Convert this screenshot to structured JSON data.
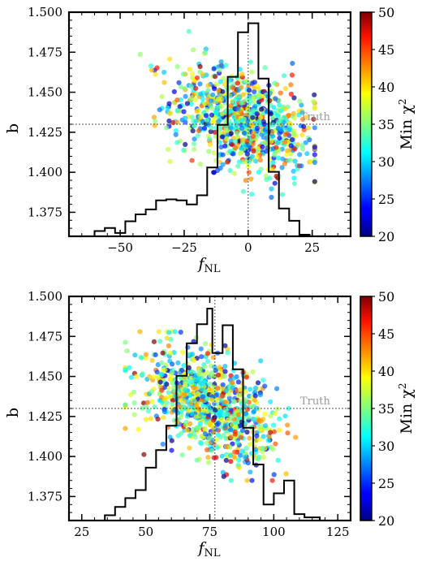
{
  "colors": {
    "colormap": "jet",
    "histogram": "#000000",
    "truth_line": "#555555",
    "truth_text": "#999999",
    "marker_alpha": 0.7
  },
  "chart_data": [
    {
      "type": "scatter",
      "panel": "top",
      "xlabel_main": "f",
      "xlabel_sub": "NL",
      "ylabel": "b",
      "xlim": [
        -70,
        40
      ],
      "ylim": [
        1.36,
        1.5
      ],
      "xticks": [
        -50,
        -25,
        0,
        25
      ],
      "xtick_labels": [
        "−50",
        "−25",
        "0",
        "25"
      ],
      "yticks": [
        1.375,
        1.4,
        1.425,
        1.45,
        1.475,
        1.5
      ],
      "ytick_labels": [
        "1.375",
        "1.400",
        "1.425",
        "1.450",
        "1.475",
        "1.500"
      ],
      "truth": {
        "x": 0,
        "y": 1.43,
        "label": "Truth"
      },
      "colorbar": {
        "label_main": "Min χ",
        "label_sup": "2",
        "range": [
          20,
          50
        ],
        "ticks": [
          20,
          25,
          30,
          35,
          40,
          45,
          50
        ],
        "tick_labels": [
          "20",
          "25",
          "30",
          "35",
          "40",
          "45",
          "50"
        ]
      },
      "points": {
        "count": 900,
        "x_center": -2,
        "x_spread": 14,
        "y_center": 1.432,
        "y_spread": 0.016,
        "slope": -0.00045,
        "x_range": [
          -62,
          26
        ],
        "y_range": [
          1.383,
          1.488
        ],
        "color_value_range": [
          20,
          50
        ],
        "color_value_mode": 34
      },
      "histogram": {
        "bin_edges": [
          -60,
          -56,
          -52,
          -48,
          -44,
          -40,
          -36,
          -32,
          -28,
          -24,
          -20,
          -16,
          -12,
          -8,
          -4,
          0,
          4,
          8,
          12,
          16,
          20,
          24
        ],
        "heights": [
          1.3633,
          1.3652,
          1.3621,
          1.3694,
          1.3737,
          1.3768,
          1.3824,
          1.3831,
          1.3824,
          1.3799,
          1.3856,
          1.403,
          1.4296,
          1.4596,
          1.4874,
          1.4931,
          1.4585,
          1.4003,
          1.3774,
          1.3697,
          1.361
        ],
        "baseline": 1.36
      }
    },
    {
      "type": "scatter",
      "panel": "bottom",
      "xlabel_main": "f",
      "xlabel_sub": "NL",
      "ylabel": "b",
      "xlim": [
        20,
        130
      ],
      "ylim": [
        1.36,
        1.5
      ],
      "xticks": [
        25,
        50,
        75,
        100,
        125
      ],
      "xtick_labels": [
        "25",
        "50",
        "75",
        "100",
        "125"
      ],
      "yticks": [
        1.375,
        1.4,
        1.425,
        1.45,
        1.475,
        1.5
      ],
      "ytick_labels": [
        "1.375",
        "1.400",
        "1.425",
        "1.450",
        "1.475",
        "1.500"
      ],
      "truth": {
        "x": 77,
        "y": 1.43,
        "label": "Truth"
      },
      "colorbar": {
        "label_main": "Min χ",
        "label_sup": "2",
        "range": [
          20,
          50
        ],
        "ticks": [
          20,
          25,
          30,
          35,
          40,
          45,
          50
        ],
        "tick_labels": [
          "20",
          "25",
          "30",
          "35",
          "40",
          "45",
          "50"
        ]
      },
      "points": {
        "count": 900,
        "x_center": 75,
        "x_spread": 13,
        "y_center": 1.432,
        "y_spread": 0.016,
        "slope": -0.00065,
        "x_range": [
          42,
          120
        ],
        "y_range": [
          1.385,
          1.478
        ],
        "color_value_range": [
          20,
          50
        ],
        "color_value_mode": 34
      },
      "histogram": {
        "bin_edges": [
          34,
          38,
          42,
          46,
          50,
          54,
          58,
          62,
          66,
          70,
          74,
          76,
          80,
          84,
          88,
          92,
          96,
          100,
          104,
          108,
          112,
          118
        ],
        "heights": [
          1.3633,
          1.3685,
          1.374,
          1.379,
          1.393,
          1.404,
          1.4192,
          1.4504,
          1.4707,
          1.4826,
          1.4924,
          1.4646,
          1.482,
          1.4545,
          1.418,
          1.395,
          1.37,
          1.377,
          1.385,
          1.364,
          1.362
        ],
        "baseline": 1.36
      }
    }
  ]
}
